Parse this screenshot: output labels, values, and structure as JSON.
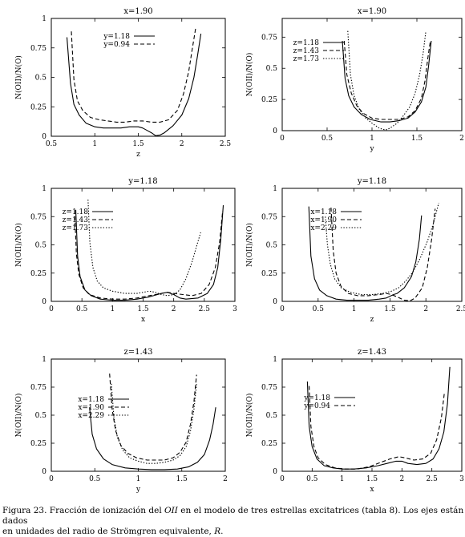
{
  "chart_data": [
    {
      "type": "line",
      "title": "x=1.90",
      "xlabel": "z",
      "ylabel": "N(OII)/N(O)",
      "xlim": [
        0.5,
        2.5
      ],
      "ylim": [
        0,
        1
      ],
      "xticks": [
        "0.5",
        "1",
        "1.5",
        "2",
        "2.5"
      ],
      "yticks": [
        "0",
        "0.25",
        "0.5",
        "0.75",
        "1"
      ],
      "legend_position": "top-right",
      "series": [
        {
          "name": "y=1.18",
          "dash": "solid",
          "x": [
            0.68,
            0.72,
            0.76,
            0.82,
            0.9,
            1.0,
            1.1,
            1.2,
            1.3,
            1.4,
            1.5,
            1.55,
            1.6,
            1.65,
            1.7,
            1.75,
            1.8,
            1.9,
            2.0,
            2.08,
            2.14,
            2.18,
            2.22
          ],
          "y": [
            0.84,
            0.45,
            0.27,
            0.18,
            0.11,
            0.08,
            0.07,
            0.07,
            0.07,
            0.08,
            0.08,
            0.07,
            0.05,
            0.03,
            0.005,
            0.01,
            0.03,
            0.09,
            0.18,
            0.32,
            0.5,
            0.68,
            0.87
          ]
        },
        {
          "name": "y=0.94",
          "dash": "dashed",
          "x": [
            0.73,
            0.76,
            0.8,
            0.86,
            0.95,
            1.05,
            1.15,
            1.25,
            1.35,
            1.45,
            1.55,
            1.65,
            1.75,
            1.85,
            1.95,
            2.02,
            2.08,
            2.12,
            2.16
          ],
          "y": [
            0.89,
            0.48,
            0.3,
            0.22,
            0.16,
            0.14,
            0.13,
            0.12,
            0.12,
            0.13,
            0.13,
            0.12,
            0.12,
            0.14,
            0.22,
            0.36,
            0.55,
            0.74,
            0.92
          ]
        }
      ]
    },
    {
      "type": "line",
      "title": "x=1.90",
      "xlabel": "y",
      "ylabel": "N(OII)/N(O)",
      "xlim": [
        0,
        2
      ],
      "ylim": [
        0,
        0.9
      ],
      "xticks": [
        "0",
        "0.5",
        "1",
        "1.5",
        "2"
      ],
      "yticks": [
        "0",
        "0.25",
        "0.5",
        "0.75"
      ],
      "legend_position": "top-left",
      "series": [
        {
          "name": "z=1.18",
          "dash": "solid",
          "x": [
            0.67,
            0.7,
            0.74,
            0.8,
            0.88,
            0.98,
            1.1,
            1.2,
            1.3,
            1.4,
            1.48,
            1.55,
            1.6,
            1.63,
            1.66
          ],
          "y": [
            0.72,
            0.42,
            0.28,
            0.19,
            0.13,
            0.09,
            0.07,
            0.07,
            0.08,
            0.1,
            0.15,
            0.23,
            0.35,
            0.52,
            0.72
          ]
        },
        {
          "name": "z=1.43",
          "dash": "dashed",
          "x": [
            0.69,
            0.72,
            0.77,
            0.83,
            0.9,
            1.0,
            1.1,
            1.2,
            1.3,
            1.4,
            1.48,
            1.55,
            1.59,
            1.62,
            1.65
          ],
          "y": [
            0.72,
            0.45,
            0.3,
            0.2,
            0.14,
            0.1,
            0.09,
            0.09,
            0.09,
            0.11,
            0.16,
            0.26,
            0.4,
            0.57,
            0.72
          ]
        },
        {
          "name": "z=1.73",
          "dash": "dotted",
          "x": [
            0.73,
            0.76,
            0.8,
            0.86,
            0.93,
            1.0,
            1.08,
            1.15,
            1.2,
            1.28,
            1.35,
            1.42,
            1.48,
            1.53,
            1.57,
            1.6
          ],
          "y": [
            0.8,
            0.45,
            0.28,
            0.17,
            0.1,
            0.06,
            0.02,
            0.005,
            0.02,
            0.06,
            0.12,
            0.19,
            0.3,
            0.45,
            0.62,
            0.8
          ]
        }
      ]
    },
    {
      "type": "line",
      "title": "y=1.18",
      "xlabel": "x",
      "ylabel": "N(OII)/N(O)",
      "xlim": [
        0,
        3
      ],
      "ylim": [
        0,
        1
      ],
      "xticks": [
        "0",
        "0.5",
        "1",
        "1.5",
        "2",
        "2.5",
        "3"
      ],
      "yticks": [
        "0",
        "0.25",
        "0.5",
        "0.75",
        "1"
      ],
      "legend_position": "top-left",
      "series": [
        {
          "name": "z=1.18",
          "dash": "solid",
          "x": [
            0.4,
            0.43,
            0.47,
            0.55,
            0.65,
            0.8,
            1.0,
            1.2,
            1.4,
            1.6,
            1.8,
            1.9,
            2.0,
            2.1,
            2.2,
            2.4,
            2.55,
            2.65,
            2.72,
            2.77,
            2.81
          ],
          "y": [
            0.81,
            0.4,
            0.22,
            0.1,
            0.05,
            0.02,
            0.01,
            0.01,
            0.02,
            0.04,
            0.07,
            0.08,
            0.06,
            0.03,
            0.02,
            0.03,
            0.07,
            0.15,
            0.3,
            0.55,
            0.85
          ]
        },
        {
          "name": "z=1.43",
          "dash": "dashed",
          "x": [
            0.38,
            0.41,
            0.45,
            0.52,
            0.62,
            0.8,
            1.0,
            1.2,
            1.4,
            1.6,
            1.8,
            1.9,
            2.0,
            2.15,
            2.3,
            2.45,
            2.58,
            2.68,
            2.75,
            2.8
          ],
          "y": [
            0.81,
            0.42,
            0.24,
            0.12,
            0.06,
            0.03,
            0.02,
            0.02,
            0.03,
            0.05,
            0.07,
            0.08,
            0.07,
            0.06,
            0.05,
            0.07,
            0.15,
            0.3,
            0.52,
            0.8
          ]
        },
        {
          "name": "z=1.73",
          "dash": "dotted",
          "x": [
            0.6,
            0.63,
            0.68,
            0.75,
            0.85,
            1.0,
            1.2,
            1.4,
            1.6,
            1.7,
            1.8,
            1.9,
            2.0,
            2.1,
            2.2,
            2.3,
            2.38,
            2.44
          ],
          "y": [
            0.9,
            0.52,
            0.3,
            0.18,
            0.12,
            0.09,
            0.07,
            0.07,
            0.09,
            0.08,
            0.06,
            0.05,
            0.06,
            0.1,
            0.2,
            0.35,
            0.5,
            0.61
          ]
        }
      ]
    },
    {
      "type": "line",
      "title": "y=1.18",
      "xlabel": "z",
      "ylabel": "N(OII)/N(O)",
      "xlim": [
        0,
        2.5
      ],
      "ylim": [
        0,
        1
      ],
      "xticks": [
        "0",
        "0.5",
        "1",
        "1.5",
        "2",
        "2.5"
      ],
      "yticks": [
        "0",
        "0.25",
        "0.5",
        "0.75",
        "1"
      ],
      "legend_position": "top-right",
      "series": [
        {
          "name": "x=1.18",
          "dash": "solid",
          "x": [
            0.37,
            0.4,
            0.45,
            0.52,
            0.62,
            0.75,
            0.9,
            1.05,
            1.2,
            1.35,
            1.45,
            1.55,
            1.6,
            1.7,
            1.8,
            1.86,
            1.91,
            1.94
          ],
          "y": [
            0.84,
            0.4,
            0.2,
            0.1,
            0.05,
            0.02,
            0.01,
            0.01,
            0.01,
            0.02,
            0.03,
            0.06,
            0.07,
            0.12,
            0.22,
            0.35,
            0.55,
            0.76
          ]
        },
        {
          "name": "x=1.90",
          "dash": "dashed",
          "x": [
            0.68,
            0.71,
            0.75,
            0.82,
            0.92,
            1.05,
            1.2,
            1.35,
            1.45,
            1.52,
            1.6,
            1.7,
            1.78,
            1.85,
            1.95,
            2.02,
            2.08,
            2.13
          ],
          "y": [
            0.83,
            0.45,
            0.25,
            0.13,
            0.07,
            0.05,
            0.05,
            0.06,
            0.07,
            0.06,
            0.04,
            0.01,
            0.005,
            0.03,
            0.12,
            0.3,
            0.55,
            0.82
          ]
        },
        {
          "name": "x=2.29",
          "dash": "dotted",
          "x": [
            0.6,
            0.63,
            0.67,
            0.73,
            0.82,
            0.95,
            1.1,
            1.25,
            1.4,
            1.52,
            1.62,
            1.72,
            1.82,
            1.92,
            2.02,
            2.1,
            2.15,
            2.18
          ],
          "y": [
            0.75,
            0.5,
            0.33,
            0.2,
            0.12,
            0.08,
            0.06,
            0.06,
            0.07,
            0.09,
            0.12,
            0.18,
            0.26,
            0.38,
            0.53,
            0.68,
            0.8,
            0.87
          ]
        }
      ]
    },
    {
      "type": "line",
      "title": "z=1.43",
      "xlabel": "y",
      "ylabel": "N(OII)/N(O)",
      "xlim": [
        0,
        2
      ],
      "ylim": [
        0,
        1
      ],
      "xticks": [
        "0",
        "0.5",
        "1",
        "1.5",
        "2"
      ],
      "yticks": [
        "0",
        "0.25",
        "0.5",
        "0.75",
        "1"
      ],
      "legend_position": "top-right",
      "series": [
        {
          "name": "x=1.18",
          "dash": "solid",
          "x": [
            0.44,
            0.47,
            0.52,
            0.6,
            0.7,
            0.85,
            1.0,
            1.15,
            1.3,
            1.45,
            1.58,
            1.68,
            1.76,
            1.82,
            1.86,
            1.89
          ],
          "y": [
            0.57,
            0.33,
            0.2,
            0.11,
            0.06,
            0.03,
            0.02,
            0.015,
            0.015,
            0.02,
            0.04,
            0.08,
            0.15,
            0.28,
            0.42,
            0.57
          ]
        },
        {
          "name": "x=1.90",
          "dash": "dashed",
          "x": [
            0.67,
            0.7,
            0.74,
            0.8,
            0.88,
            0.98,
            1.1,
            1.2,
            1.3,
            1.4,
            1.48,
            1.55,
            1.6,
            1.64,
            1.67
          ],
          "y": [
            0.87,
            0.55,
            0.36,
            0.23,
            0.16,
            0.12,
            0.1,
            0.1,
            0.1,
            0.12,
            0.17,
            0.26,
            0.42,
            0.62,
            0.86
          ]
        },
        {
          "name": "x=2.29",
          "dash": "dotted",
          "x": [
            0.69,
            0.72,
            0.76,
            0.82,
            0.9,
            1.0,
            1.1,
            1.2,
            1.3,
            1.4,
            1.48,
            1.55,
            1.6,
            1.64,
            1.67
          ],
          "y": [
            0.78,
            0.48,
            0.3,
            0.19,
            0.12,
            0.09,
            0.07,
            0.07,
            0.08,
            0.1,
            0.14,
            0.22,
            0.36,
            0.55,
            0.78
          ]
        }
      ]
    },
    {
      "type": "line",
      "title": "z=1.43",
      "xlabel": "x",
      "ylabel": "N(OII)/N(O)",
      "xlim": [
        0,
        3
      ],
      "ylim": [
        0,
        1
      ],
      "xticks": [
        "0",
        "0.5",
        "1",
        "1.5",
        "2",
        "2.5",
        "3"
      ],
      "yticks": [
        "0",
        "0.25",
        "0.5",
        "0.75",
        "1"
      ],
      "legend_position": "top-left",
      "series": [
        {
          "name": "y=1.18",
          "dash": "solid",
          "x": [
            0.42,
            0.45,
            0.5,
            0.58,
            0.7,
            0.85,
            1.0,
            1.2,
            1.4,
            1.6,
            1.75,
            1.9,
            2.0,
            2.1,
            2.25,
            2.4,
            2.52,
            2.62,
            2.7,
            2.76,
            2.8
          ],
          "y": [
            0.8,
            0.4,
            0.22,
            0.11,
            0.05,
            0.03,
            0.02,
            0.02,
            0.03,
            0.05,
            0.07,
            0.09,
            0.09,
            0.07,
            0.06,
            0.07,
            0.11,
            0.2,
            0.35,
            0.6,
            0.93
          ]
        },
        {
          "name": "y=0.94",
          "dash": "dashed",
          "x": [
            0.45,
            0.48,
            0.53,
            0.6,
            0.72,
            0.88,
            1.05,
            1.25,
            1.45,
            1.65,
            1.8,
            1.95,
            2.05,
            2.2,
            2.35,
            2.48,
            2.58,
            2.66,
            2.71
          ],
          "y": [
            0.76,
            0.4,
            0.22,
            0.12,
            0.06,
            0.03,
            0.02,
            0.02,
            0.04,
            0.08,
            0.11,
            0.13,
            0.12,
            0.1,
            0.11,
            0.16,
            0.28,
            0.48,
            0.7
          ]
        }
      ]
    }
  ],
  "caption": {
    "line1_prefix": "Figura 23. Fracción de ionización del ",
    "line1_ion": "OII",
    "line1_suffix": " en el modelo de tres estrellas excitatrices (tabla 8). Los ejes están dados",
    "line2_prefix": "en unidades del radio de Strömgren equivalente, ",
    "line2_symbol": "R",
    "line2_suffix": "."
  }
}
